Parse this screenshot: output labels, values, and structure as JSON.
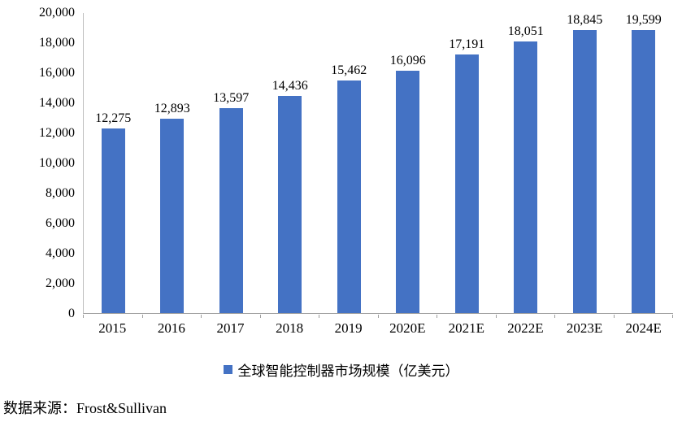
{
  "chart_data": {
    "type": "bar",
    "categories": [
      "2015",
      "2016",
      "2017",
      "2018",
      "2019",
      "2020E",
      "2021E",
      "2022E",
      "2023E",
      "2024E"
    ],
    "values": [
      12275,
      12893,
      13597,
      14436,
      15462,
      16096,
      17191,
      18051,
      18845,
      19599
    ],
    "value_labels": [
      "12,275",
      "12,893",
      "13,597",
      "14,436",
      "15,462",
      "16,096",
      "17,191",
      "18,051",
      "18,845",
      "19,599"
    ],
    "title": "",
    "xlabel": "",
    "ylabel": "",
    "ylim": [
      0,
      20000
    ],
    "ytick_step": 2000,
    "ytick_labels": [
      "0",
      "2,000",
      "4,000",
      "6,000",
      "8,000",
      "10,000",
      "12,000",
      "14,000",
      "16,000",
      "18,000",
      "20,000"
    ],
    "grid": false,
    "legend_position": "bottom",
    "legend": "全球智能控制器市场规模（亿美元）",
    "bar_color": "#4472C4"
  },
  "legend": {
    "label": "全球智能控制器市场规模（亿美元）"
  },
  "source_text": "数据来源：Frost&Sullivan",
  "colors": {
    "bar": "#4472C4",
    "axis": "#9e9e9e",
    "text": "#000000"
  }
}
